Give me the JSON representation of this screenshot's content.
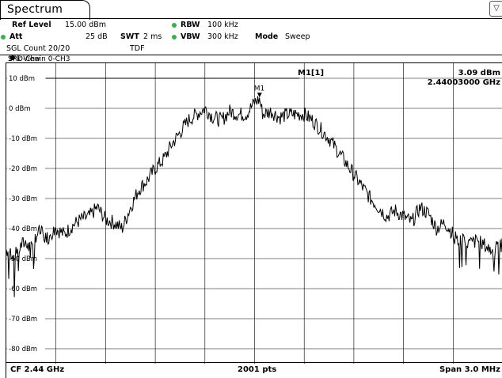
{
  "tab": {
    "label": "Spectrum"
  },
  "corner_icon": {
    "name": "preset-icon",
    "glyph": "▽"
  },
  "colors": {
    "status_dot": "#34b34a",
    "trace": "#000000",
    "grid": "#000000"
  },
  "header": {
    "ref_level_label": "Ref Level",
    "ref_level_value": "15.00 dBm",
    "att_label": "Att",
    "att_value": "25 dB",
    "swt_label": "SWT",
    "swt_value": "2 ms",
    "rbw_label": "RBW",
    "rbw_value": "100 kHz",
    "vbw_label": "VBW",
    "vbw_value": "300 kHz",
    "mode_label": "Mode",
    "mode_value": "Sweep",
    "sgl_count": "SGL Count 20/20",
    "tdf": "TDF"
  },
  "chain": {
    "label": "SRD-Chain 0-CH3",
    "trace_label": "1Pk View"
  },
  "marker": {
    "name": "M1",
    "readout_label": "M1[1]",
    "level": "3.09 dBm",
    "frequency": "2.44003000 GHz"
  },
  "footer": {
    "cf": "CF 2.44 GHz",
    "pts": "2001 pts",
    "span": "Span 3.0 MHz"
  },
  "chart_data": {
    "type": "line",
    "x_unit": "MHz offset from CF",
    "xlim": [
      -1.5,
      1.5
    ],
    "ylim": [
      -85,
      15
    ],
    "y_ticks": [
      10,
      0,
      -10,
      -20,
      -30,
      -40,
      -50,
      -60,
      -70,
      -80
    ],
    "y_tick_labels": [
      "10 dBm",
      "0 dBm",
      "-10 dBm",
      "-20 dBm",
      "-30 dBm",
      "-40 dBm",
      "-50 dBm",
      "-60 dBm",
      "-70 dBm",
      "-80 dBm"
    ],
    "grid": true,
    "reference_line_dbm": 10,
    "marker": {
      "x": 0.03,
      "y": 3.09
    },
    "series": [
      {
        "x": [
          -1.5,
          -1.45,
          -1.4,
          -1.35,
          -1.3,
          -1.25,
          -1.2,
          -1.15,
          -1.1,
          -1.05,
          -1.0,
          -0.95,
          -0.9,
          -0.85,
          -0.8,
          -0.75,
          -0.7,
          -0.65,
          -0.6,
          -0.55,
          -0.5,
          -0.45,
          -0.4,
          -0.35,
          -0.3,
          -0.25,
          -0.2,
          -0.15,
          -0.1,
          -0.05,
          0.0,
          0.03,
          0.05,
          0.1,
          0.15,
          0.2,
          0.25,
          0.3,
          0.35,
          0.4,
          0.45,
          0.5,
          0.55,
          0.6,
          0.65,
          0.7,
          0.75,
          0.8,
          0.85,
          0.9,
          0.95,
          1.0,
          1.05,
          1.1,
          1.15,
          1.2,
          1.25,
          1.3,
          1.35,
          1.4,
          1.45,
          1.5
        ],
        "values": [
          -47,
          -49,
          -45,
          -44,
          -41,
          -43,
          -40,
          -42,
          -39,
          -37,
          -36,
          -33,
          -37,
          -38,
          -40,
          -33,
          -27,
          -24,
          -20,
          -17,
          -12,
          -8,
          -4,
          -2,
          0,
          -3,
          -4,
          -1,
          -2,
          -2,
          2,
          3,
          -2,
          -1,
          -3,
          -2,
          -2,
          -2,
          -4,
          -7,
          -10,
          -14,
          -18,
          -22,
          -26,
          -30,
          -33,
          -36,
          -34,
          -36,
          -38,
          -33,
          -35,
          -40,
          -38,
          -42,
          -44,
          -45,
          -44,
          -46,
          -48,
          -42
        ]
      }
    ]
  }
}
